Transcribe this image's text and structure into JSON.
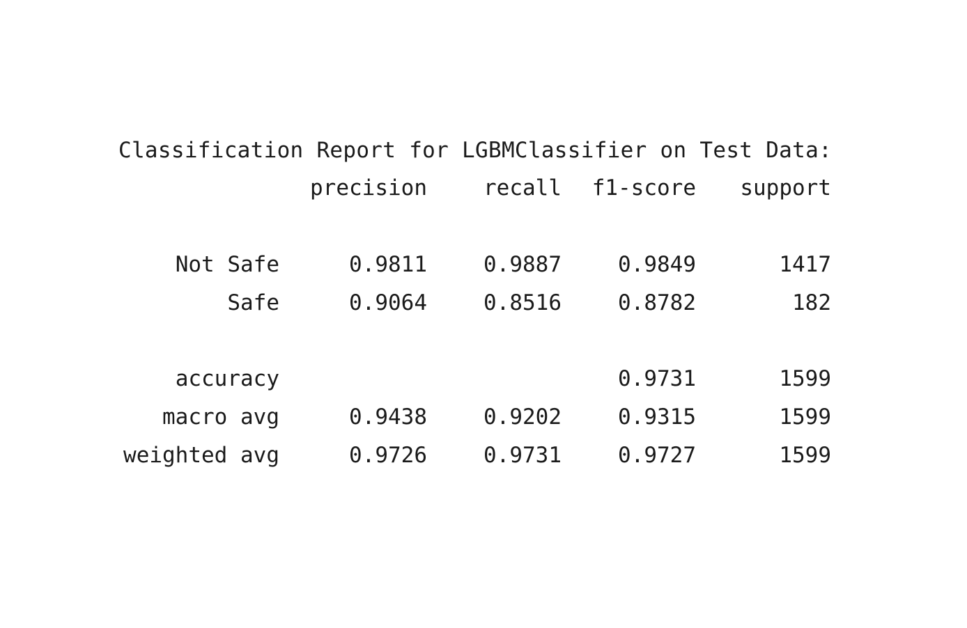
{
  "title": "Classification Report for LGBMClassifier on Test Data:",
  "headers": {
    "precision": "precision",
    "recall": "recall",
    "f1": "f1-score",
    "support": "support"
  },
  "rows": [
    {
      "label": "Not Safe",
      "precision": "0.9811",
      "recall": "0.9887",
      "f1": "0.9849",
      "support": "1417"
    },
    {
      "label": "Safe",
      "precision": "0.9064",
      "recall": "0.8516",
      "f1": "0.8782",
      "support": "182"
    },
    {
      "label": "accuracy",
      "precision": "",
      "recall": "",
      "f1": "0.9731",
      "support": "1599"
    },
    {
      "label": "macro avg",
      "precision": "0.9438",
      "recall": "0.9202",
      "f1": "0.9315",
      "support": "1599"
    },
    {
      "label": "weighted avg",
      "precision": "0.9726",
      "recall": "0.9731",
      "f1": "0.9727",
      "support": "1599"
    }
  ]
}
